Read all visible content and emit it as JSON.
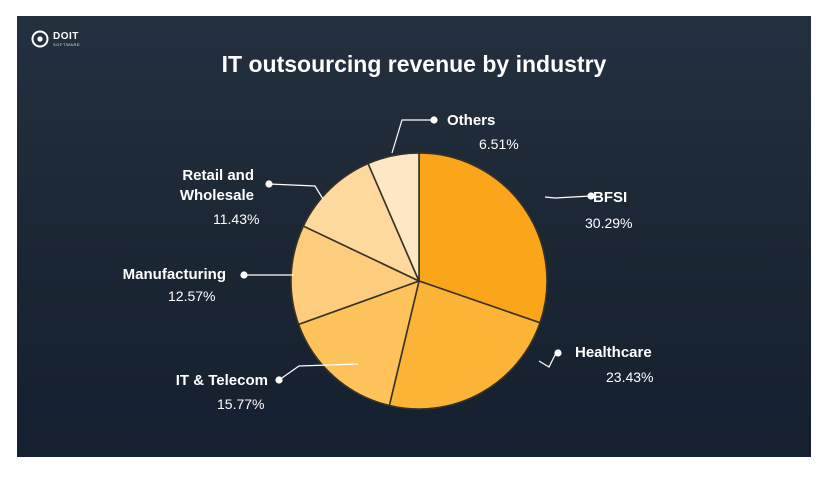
{
  "brand": {
    "name": "DOIT",
    "sub": "SOFTWARE"
  },
  "colors": {
    "background": "#1f2b39",
    "slice_outline": "#3a3226",
    "leader": "#ffffff"
  },
  "chart_data": {
    "type": "pie",
    "title": "IT outsourcing revenue by industry",
    "slices": [
      {
        "label": "BFSI",
        "value": 30.29,
        "pct_label": "30.29%",
        "color": "#fba61a"
      },
      {
        "label": "Healthcare",
        "value": 23.43,
        "pct_label": "23.43%",
        "color": "#fcb436"
      },
      {
        "label": "IT & Telecom",
        "value": 15.77,
        "pct_label": "15.77%",
        "color": "#fdc25a"
      },
      {
        "label": "Manufacturing",
        "value": 12.57,
        "pct_label": "12.57%",
        "color": "#fdcc7d"
      },
      {
        "label_lines": [
          "Retail and",
          "Wholesale"
        ],
        "label": "Retail and Wholesale",
        "value": 11.43,
        "pct_label": "11.43%",
        "color": "#fdd99e"
      },
      {
        "label": "Others",
        "value": 6.51,
        "pct_label": "6.51%",
        "color": "#fde7c4"
      }
    ]
  }
}
